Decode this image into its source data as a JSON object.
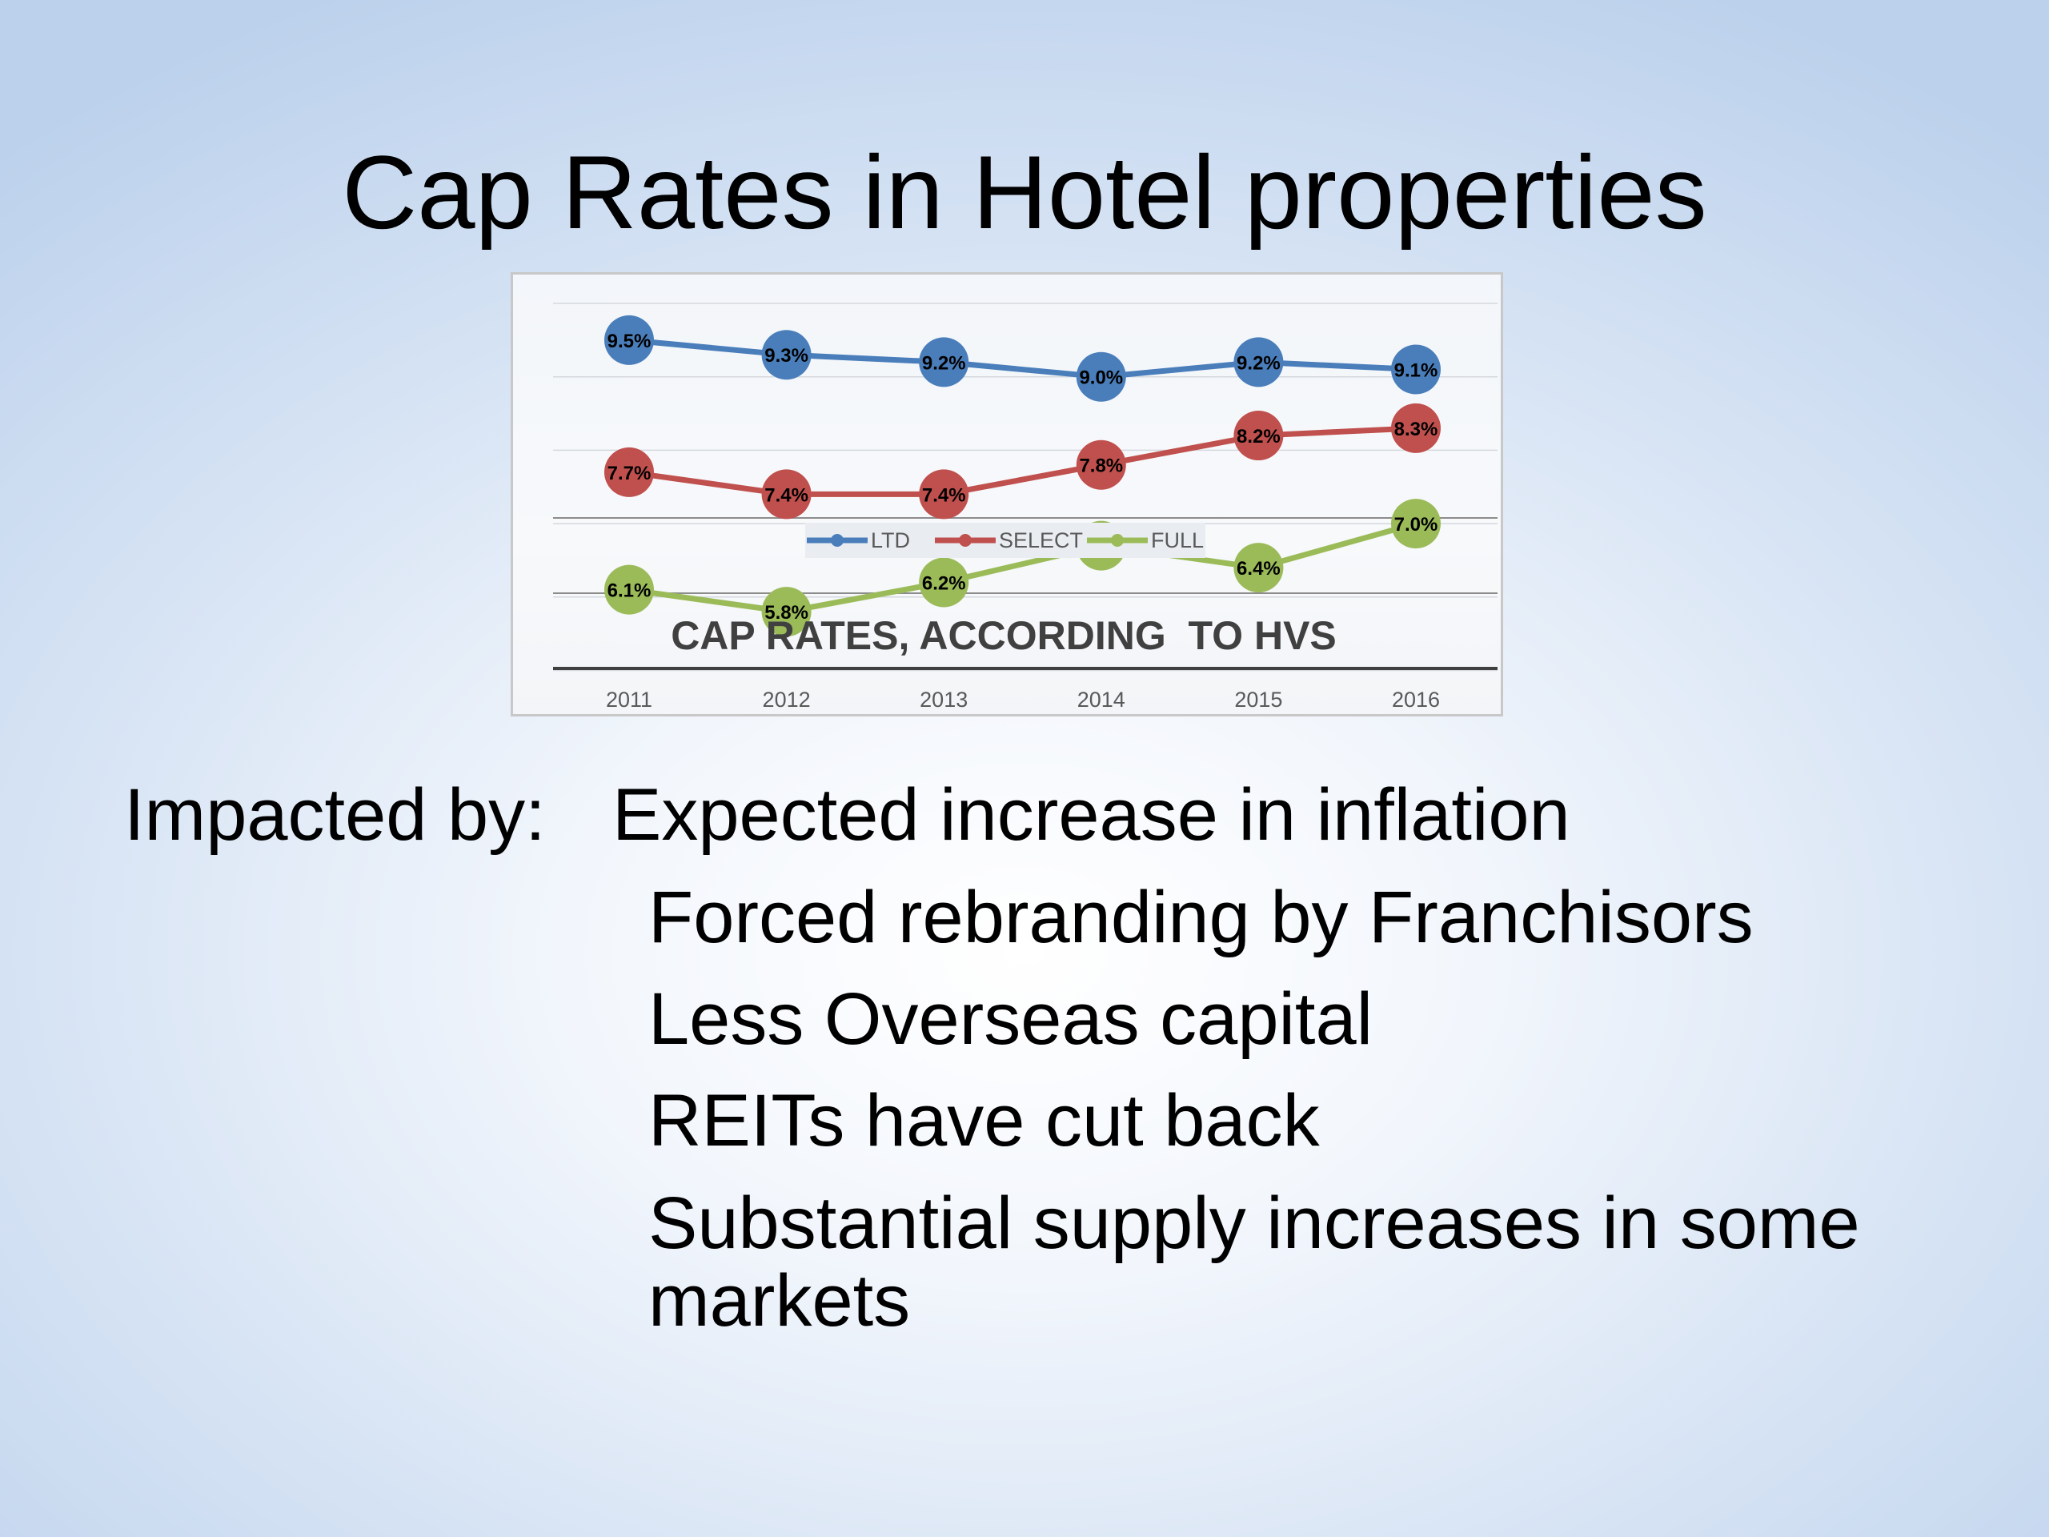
{
  "slide": {
    "title": "Cap Rates in Hotel properties",
    "impacted_label": "Impacted by:",
    "factors": [
      "Expected increase in inflation",
      "Forced rebranding by Franchisors",
      "Less Overseas capital",
      "REITs have cut back",
      "Substantial supply increases in some",
      "markets"
    ]
  },
  "chart_data": {
    "type": "line",
    "title": "CAP RATES, ACCORDING  TO HVS",
    "xlabel": "",
    "ylabel": "",
    "categories": [
      "2011",
      "2012",
      "2013",
      "2014",
      "2015",
      "2016"
    ],
    "ylim": [
      2,
      10
    ],
    "grid": true,
    "legend": "bottom",
    "series": [
      {
        "name": "LTD",
        "color": "#4a7ebb",
        "values": [
          9.5,
          9.3,
          9.2,
          9.0,
          9.2,
          9.1
        ],
        "labels": [
          "9.5%",
          "9.3%",
          "9.2%",
          "9.0%",
          "9.2%",
          "9.1%"
        ]
      },
      {
        "name": "SELECT",
        "color": "#c0504d",
        "values": [
          7.7,
          7.4,
          7.4,
          7.8,
          8.2,
          8.3
        ],
        "labels": [
          "7.7%",
          "7.4%",
          "7.4%",
          "7.8%",
          "8.2%",
          "8.3%"
        ]
      },
      {
        "name": "FULL",
        "color": "#9bbb59",
        "values": [
          6.1,
          5.8,
          6.2,
          6.7,
          6.4,
          7.0
        ],
        "labels": [
          "6.1%",
          "5.8%",
          "6.2%",
          "6.7%",
          "6.4%",
          "7.0%"
        ]
      }
    ]
  }
}
